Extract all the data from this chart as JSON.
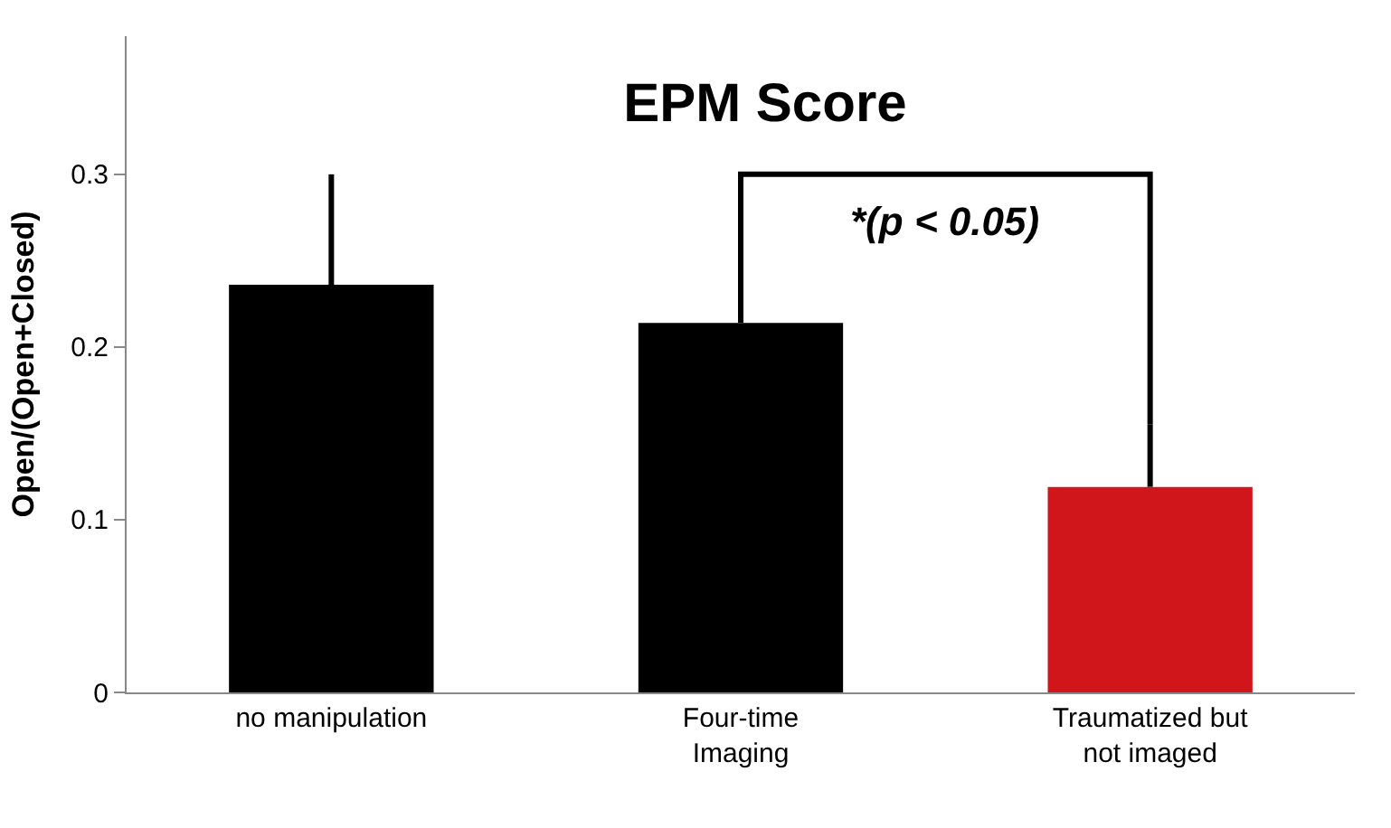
{
  "chart_data": {
    "type": "bar",
    "title": "EPM Score",
    "ylabel": "Open/(Open+Closed)",
    "categories": [
      "no manipulation",
      "Four-time\nImaging",
      "Traumatized but\nnot imaged"
    ],
    "values": [
      0.236,
      0.214,
      0.119
    ],
    "colors": [
      "#000000",
      "#000000",
      "#d0161b"
    ],
    "errors": [
      [
        0.236,
        0.3
      ],
      [
        0.214,
        0.234
      ],
      [
        0.119,
        0.155
      ]
    ],
    "ylim": [
      0,
      0.38
    ],
    "yticks": [
      0,
      0.1,
      0.2,
      0.3
    ],
    "annotations": [
      "*(p < 0.05)"
    ]
  }
}
